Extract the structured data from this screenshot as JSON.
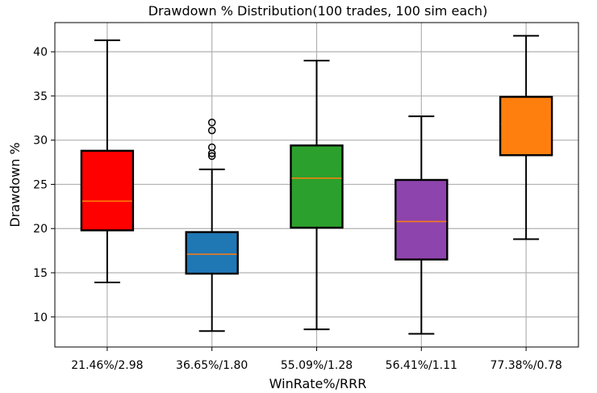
{
  "chart_data": {
    "type": "boxplot",
    "title": "Drawdown % Distribution(100 trades, 100 sim each)",
    "xlabel": "WinRate%/RRR",
    "ylabel": "Drawdown %",
    "ylim": [
      6.6,
      43.3
    ],
    "yticks": [
      10,
      15,
      20,
      25,
      30,
      35,
      40
    ],
    "grid": true,
    "categories": [
      "21.46%/2.98",
      "36.65%/1.80",
      "55.09%/1.28",
      "56.41%/1.11",
      "77.38%/0.78"
    ],
    "boxes": [
      {
        "label": "21.46%/2.98",
        "whisker_low": 13.9,
        "q1": 19.8,
        "median": 23.1,
        "q3": 28.8,
        "whisker_high": 41.3,
        "outliers": [],
        "color": "#ff0000"
      },
      {
        "label": "36.65%/1.80",
        "whisker_low": 8.4,
        "q1": 14.9,
        "median": 17.1,
        "q3": 19.6,
        "whisker_high": 26.7,
        "outliers": [
          28.2,
          28.5,
          29.2,
          31.1,
          32.0
        ],
        "color": "#1f77b4"
      },
      {
        "label": "55.09%/1.28",
        "whisker_low": 8.6,
        "q1": 20.1,
        "median": 25.7,
        "q3": 29.4,
        "whisker_high": 39.0,
        "outliers": [],
        "color": "#2ca02c"
      },
      {
        "label": "56.41%/1.11",
        "whisker_low": 8.1,
        "q1": 16.5,
        "median": 20.8,
        "q3": 25.5,
        "whisker_high": 32.7,
        "outliers": [],
        "color": "#8e44ad"
      },
      {
        "label": "77.38%/0.78",
        "whisker_low": 18.8,
        "q1": 28.3,
        "median": 31.8,
        "q3": 34.9,
        "whisker_high": 41.8,
        "outliers": [],
        "color": "#ff7f0e"
      }
    ],
    "median_color": "#ff7f0e"
  }
}
